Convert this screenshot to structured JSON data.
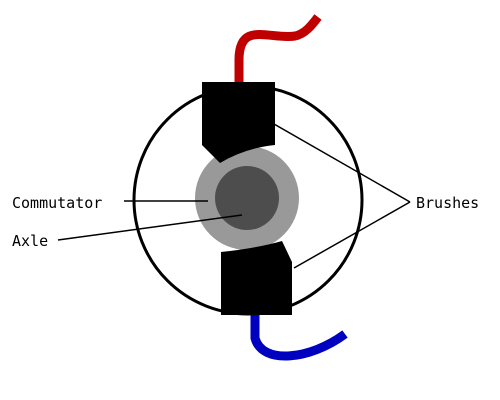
{
  "labels": {
    "commutator": "Commutator",
    "axle": "Axle",
    "brushes": "Brushes"
  },
  "colors": {
    "background": "#ffffff",
    "outline": "#000000",
    "brush": "#000000",
    "commutator": "#999999",
    "axle": "#4d4d4d",
    "wire_positive": "#c00000",
    "wire_negative": "#0000c0"
  }
}
